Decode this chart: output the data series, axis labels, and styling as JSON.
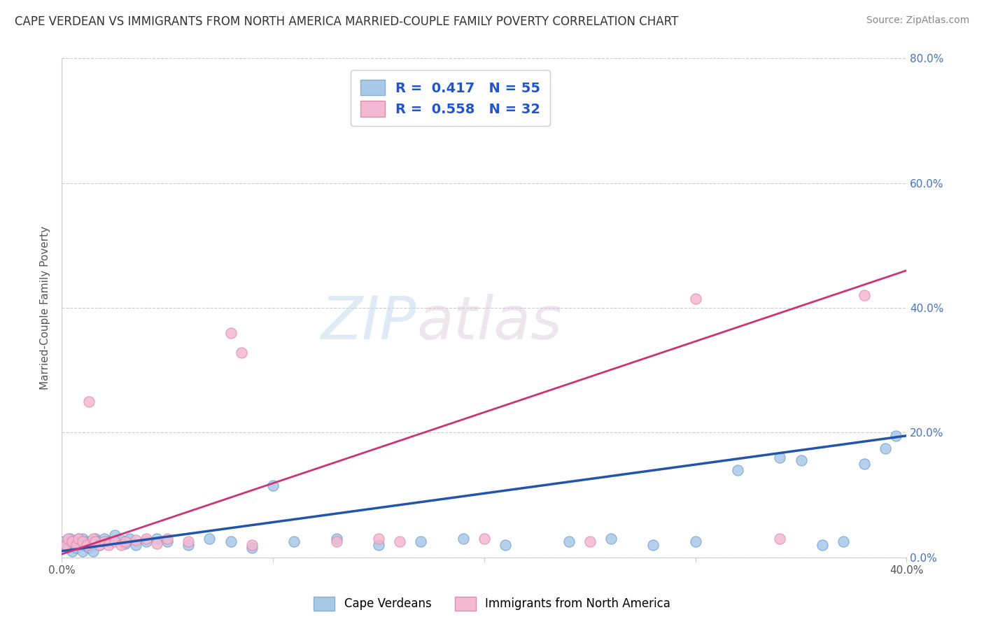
{
  "title": "CAPE VERDEAN VS IMMIGRANTS FROM NORTH AMERICA MARRIED-COUPLE FAMILY POVERTY CORRELATION CHART",
  "source": "Source: ZipAtlas.com",
  "ylabel": "Married-Couple Family Poverty",
  "xlim": [
    0.0,
    0.4
  ],
  "ylim": [
    0.0,
    0.8
  ],
  "xticks": [
    0.0,
    0.1,
    0.2,
    0.3,
    0.4
  ],
  "yticks": [
    0.0,
    0.2,
    0.4,
    0.6,
    0.8
  ],
  "xtick_labels": [
    "0.0%",
    "",
    "",
    "",
    "40.0%"
  ],
  "ytick_labels": [
    "0.0%",
    "20.0%",
    "40.0%",
    "60.0%",
    "80.0%"
  ],
  "blue_scatter_color": "#a8c8e8",
  "blue_edge_color": "#6699cc",
  "pink_scatter_color": "#f4b8d0",
  "pink_edge_color": "#e080a8",
  "blue_line_color": "#2255aa",
  "pink_line_color": "#cc3377",
  "legend_R1": "0.417",
  "legend_N1": "55",
  "legend_R2": "0.558",
  "legend_N2": "32",
  "legend_label1": "Cape Verdeans",
  "legend_label2": "Immigrants from North America",
  "watermark": "ZIPatlas",
  "blue_x": [
    0.001,
    0.002,
    0.003,
    0.004,
    0.005,
    0.005,
    0.006,
    0.007,
    0.008,
    0.008,
    0.009,
    0.01,
    0.01,
    0.011,
    0.012,
    0.013,
    0.014,
    0.015,
    0.015,
    0.016,
    0.017,
    0.018,
    0.02,
    0.022,
    0.025,
    0.028,
    0.03,
    0.032,
    0.035,
    0.04,
    0.045,
    0.05,
    0.06,
    0.07,
    0.08,
    0.09,
    0.1,
    0.11,
    0.13,
    0.15,
    0.17,
    0.19,
    0.21,
    0.24,
    0.26,
    0.28,
    0.3,
    0.32,
    0.34,
    0.35,
    0.36,
    0.37,
    0.38,
    0.39,
    0.395
  ],
  "blue_y": [
    0.025,
    0.02,
    0.015,
    0.03,
    0.01,
    0.025,
    0.02,
    0.015,
    0.03,
    0.02,
    0.025,
    0.01,
    0.03,
    0.02,
    0.025,
    0.015,
    0.025,
    0.02,
    0.01,
    0.03,
    0.025,
    0.02,
    0.03,
    0.025,
    0.035,
    0.028,
    0.022,
    0.03,
    0.02,
    0.025,
    0.03,
    0.025,
    0.02,
    0.03,
    0.025,
    0.015,
    0.115,
    0.025,
    0.03,
    0.02,
    0.025,
    0.03,
    0.02,
    0.025,
    0.03,
    0.02,
    0.025,
    0.14,
    0.16,
    0.155,
    0.02,
    0.025,
    0.15,
    0.175,
    0.195
  ],
  "pink_x": [
    0.002,
    0.003,
    0.005,
    0.007,
    0.008,
    0.01,
    0.012,
    0.013,
    0.015,
    0.016,
    0.018,
    0.02,
    0.022,
    0.025,
    0.028,
    0.03,
    0.035,
    0.04,
    0.045,
    0.05,
    0.06,
    0.08,
    0.085,
    0.09,
    0.13,
    0.15,
    0.16,
    0.2,
    0.25,
    0.3,
    0.34,
    0.38
  ],
  "pink_y": [
    0.02,
    0.03,
    0.025,
    0.02,
    0.03,
    0.025,
    0.02,
    0.25,
    0.03,
    0.025,
    0.02,
    0.025,
    0.02,
    0.025,
    0.02,
    0.025,
    0.028,
    0.03,
    0.022,
    0.03,
    0.025,
    0.36,
    0.328,
    0.02,
    0.025,
    0.03,
    0.025,
    0.03,
    0.025,
    0.415,
    0.03,
    0.42
  ],
  "blue_trend_x": [
    0.0,
    0.4
  ],
  "blue_trend_y": [
    0.01,
    0.195
  ],
  "pink_trend_x": [
    0.0,
    0.4
  ],
  "pink_trend_y": [
    0.005,
    0.46
  ]
}
